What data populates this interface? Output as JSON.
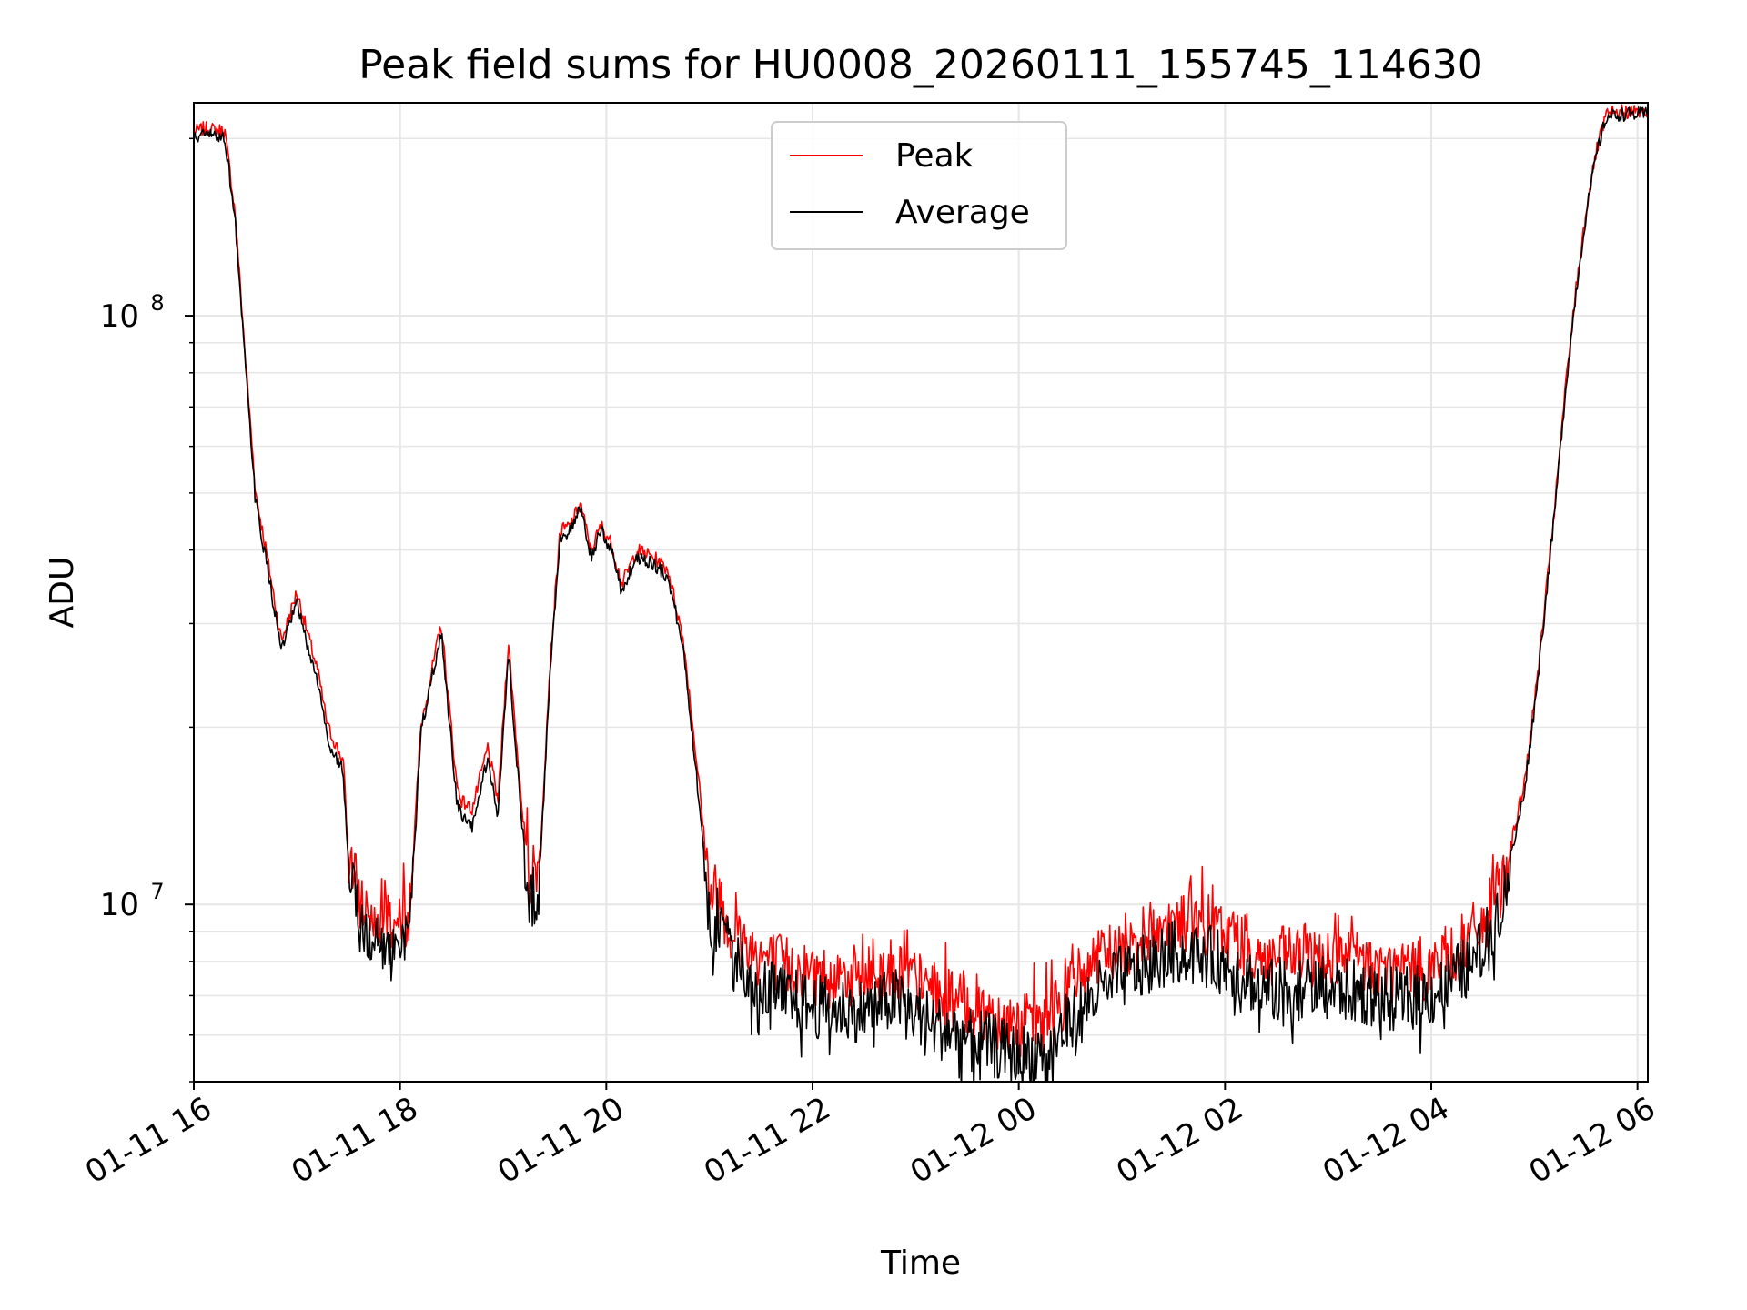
{
  "chart_data": {
    "type": "line",
    "title": "Peak field sums for HU0008_20260111_155745_114630",
    "xlabel": "Time",
    "ylabel": "ADU",
    "yscale": "log",
    "ylim": [
      5000000,
      230000000
    ],
    "xlim_hours": [
      0,
      14.1
    ],
    "grid": true,
    "legend_position": "top-center",
    "colors": {
      "peak": "#ff0000",
      "average": "#000000",
      "grid": "#e6e6e6"
    },
    "x_ticks": [
      "01-11 16",
      "01-11 18",
      "01-11 20",
      "01-11 22",
      "01-12 00",
      "01-12 02",
      "01-12 04",
      "01-12 06"
    ],
    "x_tick_hours": [
      0,
      2,
      4,
      6,
      8,
      10,
      12,
      14
    ],
    "y_ticks": [
      {
        "base": "10",
        "exp": "7",
        "value": 10000000
      },
      {
        "base": "10",
        "exp": "8",
        "value": 100000000
      }
    ],
    "series": [
      {
        "name": "Peak",
        "color": "#ff0000",
        "x_hours": [
          0,
          0.1,
          0.3,
          0.4,
          0.5,
          0.6,
          0.7,
          0.85,
          1.0,
          1.1,
          1.2,
          1.3,
          1.45,
          1.5,
          1.6,
          1.7,
          1.85,
          2.0,
          2.1,
          2.2,
          2.4,
          2.55,
          2.6,
          2.7,
          2.85,
          2.95,
          3.05,
          3.15,
          3.25,
          3.35,
          3.45,
          3.55,
          3.65,
          3.75,
          3.85,
          3.95,
          4.05,
          4.15,
          4.3,
          4.45,
          4.6,
          4.75,
          4.9,
          5.0,
          5.1,
          5.2,
          5.3,
          5.45,
          5.6,
          6.0,
          6.5,
          6.8,
          7.2,
          7.6,
          8.0,
          8.3,
          8.6,
          8.9,
          9.2,
          9.5,
          9.8,
          10.1,
          10.4,
          10.7,
          11.0,
          11.3,
          11.6,
          12.0,
          12.3,
          12.5,
          12.7,
          12.9,
          13.0,
          13.1,
          13.2,
          13.3,
          13.4,
          13.5,
          13.6,
          13.7,
          13.85,
          14.1
        ],
        "values": [
          205000000,
          208000000,
          206000000,
          150000000,
          85000000,
          50000000,
          40000000,
          28000000,
          34000000,
          29000000,
          25000000,
          20000000,
          17500000,
          12000000,
          10300000,
          9700000,
          9800000,
          9000000,
          10000000,
          20000000,
          30000000,
          16000000,
          15000000,
          14500000,
          18500000,
          15000000,
          28000000,
          17000000,
          11000000,
          11500000,
          25000000,
          43000000,
          44000000,
          48000000,
          40000000,
          44000000,
          41000000,
          35000000,
          40000000,
          39000000,
          37000000,
          28000000,
          16000000,
          10500000,
          10400000,
          9000000,
          8700000,
          8300000,
          8000000,
          7600000,
          7500000,
          7800000,
          7000000,
          6700000,
          6200000,
          6400000,
          7600000,
          8300000,
          8800000,
          9300000,
          9200000,
          8800000,
          8000000,
          8200000,
          8100000,
          8000000,
          7700000,
          7800000,
          8500000,
          9200000,
          11000000,
          16000000,
          22000000,
          32000000,
          48000000,
          75000000,
          110000000,
          150000000,
          190000000,
          220000000,
          222000000,
          222000000
        ]
      },
      {
        "name": "Average",
        "color": "#000000",
        "x_hours": [
          0,
          0.1,
          0.3,
          0.4,
          0.5,
          0.6,
          0.7,
          0.85,
          1.0,
          1.1,
          1.2,
          1.3,
          1.45,
          1.5,
          1.6,
          1.7,
          1.85,
          2.0,
          2.1,
          2.2,
          2.4,
          2.55,
          2.6,
          2.7,
          2.85,
          2.95,
          3.05,
          3.15,
          3.25,
          3.35,
          3.45,
          3.55,
          3.65,
          3.75,
          3.85,
          3.95,
          4.05,
          4.15,
          4.3,
          4.45,
          4.6,
          4.75,
          4.9,
          5.0,
          5.1,
          5.2,
          5.3,
          5.45,
          5.6,
          6.0,
          6.5,
          6.8,
          7.2,
          7.6,
          8.0,
          8.3,
          8.6,
          8.9,
          9.2,
          9.5,
          9.8,
          10.1,
          10.4,
          10.7,
          11.0,
          11.3,
          11.6,
          12.0,
          12.3,
          12.5,
          12.7,
          12.9,
          13.0,
          13.1,
          13.2,
          13.3,
          13.4,
          13.5,
          13.6,
          13.7,
          13.85,
          14.1
        ],
        "values": [
          200000000,
          203000000,
          201000000,
          146000000,
          82000000,
          48000000,
          38500000,
          27000000,
          32500000,
          27500000,
          24000000,
          19000000,
          16800000,
          11300000,
          9400000,
          8700000,
          8600000,
          8000000,
          9300000,
          19500000,
          29000000,
          15000000,
          14000000,
          13500000,
          17800000,
          14000000,
          27000000,
          16000000,
          10000000,
          10800000,
          24000000,
          42000000,
          43000000,
          47000000,
          39000000,
          43000000,
          40000000,
          34000000,
          39000000,
          38000000,
          36000000,
          27000000,
          15000000,
          9500000,
          9400000,
          8200000,
          7900000,
          7400000,
          7100000,
          6700000,
          6600000,
          6900000,
          6200000,
          5900000,
          5500000,
          5700000,
          6700000,
          7400000,
          7800000,
          8300000,
          8200000,
          7800000,
          7100000,
          7300000,
          7200000,
          7100000,
          6900000,
          7000000,
          7700000,
          8400000,
          10300000,
          15500000,
          21500000,
          31500000,
          47000000,
          74000000,
          108000000,
          148000000,
          188000000,
          218000000,
          220000000,
          220000000
        ]
      }
    ]
  }
}
